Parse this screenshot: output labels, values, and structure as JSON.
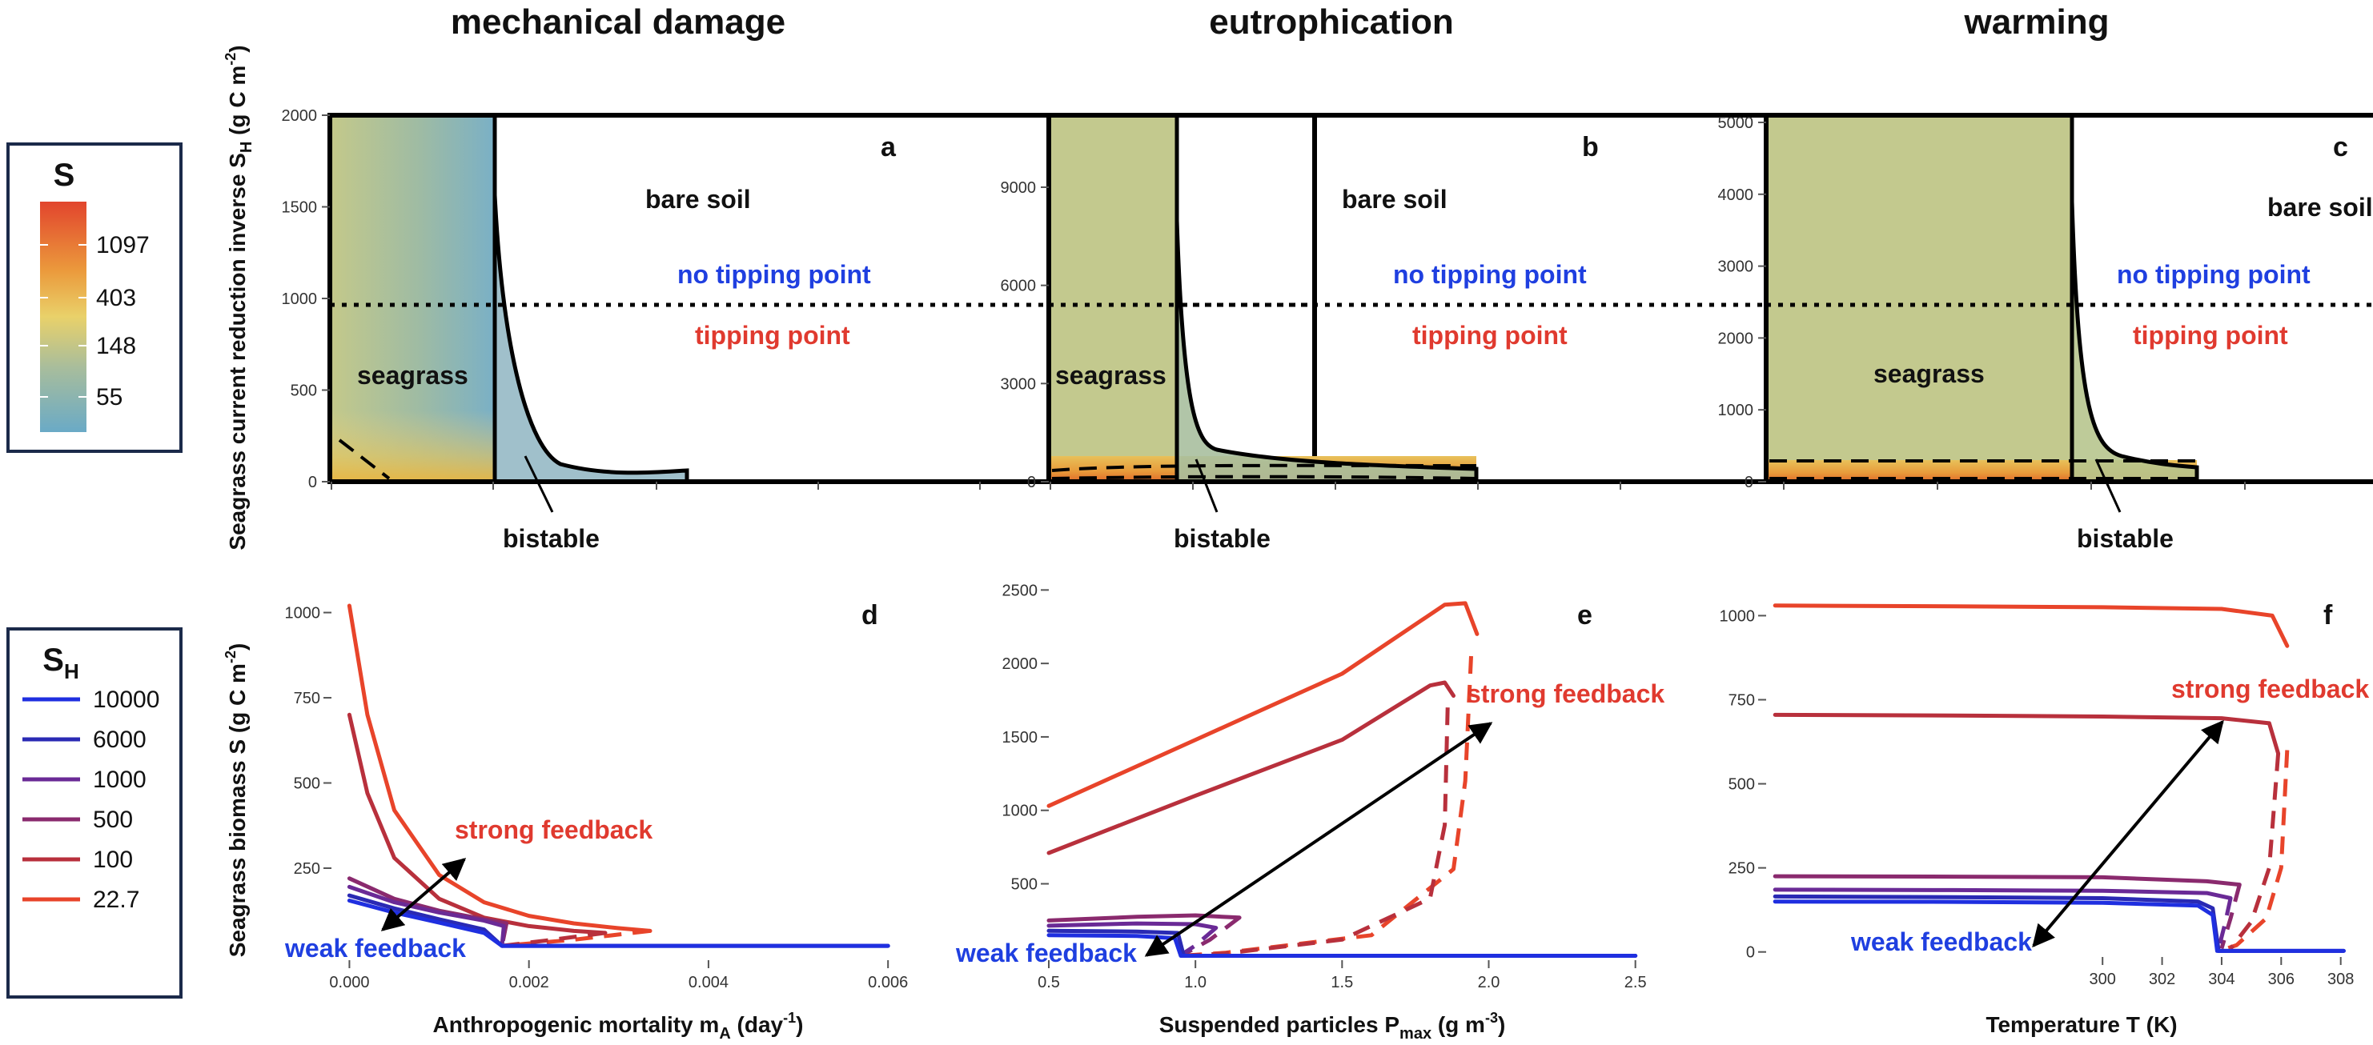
{
  "column_titles": [
    "mechanical damage",
    "eutrophication",
    "warming"
  ],
  "legend_S": {
    "title": "S",
    "labels": [
      "1097",
      "403",
      "148",
      "55"
    ]
  },
  "legend_SH": {
    "title": "S",
    "title_sub": "H",
    "entries": [
      {
        "label": "10000",
        "color": "#1f2fe0"
      },
      {
        "label": "6000",
        "color": "#2a2ab4"
      },
      {
        "label": "1000",
        "color": "#6a2a96"
      },
      {
        "label": "500",
        "color": "#8a2a6e"
      },
      {
        "label": "100",
        "color": "#b8303c"
      },
      {
        "label": "22.7",
        "color": "#e8442a"
      }
    ]
  },
  "labels": {
    "top_ylabel_main": "Seagrass current reduction inverse S",
    "top_ylabel_sub": "H",
    "top_ylabel_unit": " (g C m",
    "top_ylabel_exp": "-2",
    "top_ylabel_close": ")",
    "bottom_ylabel_main": "Seagrass biomass S (g C m",
    "bottom_ylabel_exp": "-2",
    "bottom_ylabel_close": ")",
    "xlabel_d_main": "Anthropogenic mortality m",
    "xlabel_d_sub": "A",
    "xlabel_d_unit": " (day",
    "xlabel_d_exp": "-1",
    "xlabel_d_close": ")",
    "xlabel_e_main": "Suspended particles P",
    "xlabel_e_sub": "max",
    "xlabel_e_unit": " (g m",
    "xlabel_e_exp": "-3",
    "xlabel_e_close": ")",
    "xlabel_f": "Temperature T (K)",
    "bare_soil": "bare soil",
    "seagrass": "seagrass",
    "no_tipping_point": "no tipping point",
    "tipping_point": "tipping point",
    "bistable": "bistable",
    "strong_feedback": "strong feedback",
    "weak_feedback": "weak feedback"
  },
  "chart_data": [
    {
      "panel": "a",
      "type": "area",
      "x_ticks": [
        "0.000",
        "0.002",
        "0.004",
        "0.006"
      ],
      "xlim": [
        0,
        0.006
      ],
      "y_ticks": [
        "0",
        "500",
        "1000",
        "1500",
        "2000"
      ],
      "ylim": [
        0,
        2000
      ],
      "tipping_threshold_SH": 975,
      "regions": [
        "seagrass",
        "bare soil",
        "bistable"
      ],
      "fold_x": 0.00175,
      "fold_x_max": 0.0037
    },
    {
      "panel": "b",
      "type": "area",
      "x_ticks": [],
      "y_ticks": [
        "0",
        "3000",
        "6000",
        "9000"
      ],
      "ylim": [
        0,
        11200
      ],
      "tipping_threshold_SH": 5350,
      "regions": [
        "seagrass",
        "bare soil",
        "bistable"
      ]
    },
    {
      "panel": "c",
      "type": "area",
      "x_ticks": [],
      "y_ticks": [
        "0",
        "1000",
        "2000",
        "3000",
        "4000",
        "5000"
      ],
      "ylim": [
        0,
        5100
      ],
      "tipping_threshold_SH": 2420,
      "regions": [
        "seagrass",
        "bare soil",
        "bistable"
      ]
    },
    {
      "panel": "d",
      "type": "line",
      "x_ticks": [
        "0.000",
        "0.002",
        "0.004",
        "0.006"
      ],
      "xlim": [
        -0.0002,
        0.00615
      ],
      "y_ticks": [
        "250",
        "500",
        "750",
        "1000"
      ],
      "ylim": [
        -20,
        1060
      ],
      "series": [
        {
          "name": "22.7",
          "stable": [
            [
              0,
              1020
            ],
            [
              0.0002,
              700
            ],
            [
              0.0005,
              420
            ],
            [
              0.001,
              230
            ],
            [
              0.0015,
              150
            ],
            [
              0.002,
              110
            ],
            [
              0.0025,
              88
            ],
            [
              0.003,
              74
            ],
            [
              0.00335,
              66
            ]
          ],
          "unstable": [
            [
              0.00335,
              66
            ],
            [
              0.0025,
              40
            ],
            [
              0.0017,
              22
            ]
          ]
        },
        {
          "name": "100",
          "stable": [
            [
              0,
              700
            ],
            [
              0.0002,
              470
            ],
            [
              0.0005,
              280
            ],
            [
              0.001,
              160
            ],
            [
              0.0015,
              105
            ],
            [
              0.002,
              80
            ],
            [
              0.0025,
              66
            ],
            [
              0.00285,
              60
            ]
          ],
          "unstable": [
            [
              0.00285,
              60
            ],
            [
              0.0022,
              38
            ],
            [
              0.0017,
              22
            ]
          ]
        },
        {
          "name": "500",
          "stable": [
            [
              0,
              220
            ],
            [
              0.0005,
              160
            ],
            [
              0.001,
              125
            ],
            [
              0.0015,
              100
            ],
            [
              0.00175,
              88
            ]
          ],
          "unstable": [
            [
              0.00175,
              88
            ],
            [
              0.0017,
              22
            ]
          ]
        },
        {
          "name": "1000",
          "stable": [
            [
              0,
              195
            ],
            [
              0.0005,
              150
            ],
            [
              0.001,
              120
            ],
            [
              0.0015,
              96
            ],
            [
              0.00172,
              80
            ]
          ],
          "unstable": [
            [
              0.00172,
              80
            ],
            [
              0.0017,
              22
            ]
          ]
        },
        {
          "name": "6000",
          "stable": [
            [
              0,
              170
            ],
            [
              0.0005,
              132
            ],
            [
              0.001,
              100
            ],
            [
              0.0015,
              70
            ],
            [
              0.0017,
              22
            ],
            [
              0.006,
              22
            ]
          ]
        },
        {
          "name": "10000",
          "stable": [
            [
              0,
              155
            ],
            [
              0.0005,
              120
            ],
            [
              0.001,
              90
            ],
            [
              0.0015,
              60
            ],
            [
              0.0017,
              22
            ],
            [
              0.006,
              22
            ]
          ]
        }
      ]
    },
    {
      "panel": "e",
      "type": "line",
      "x_ticks": [
        "0.5",
        "1.0",
        "1.5",
        "2.0",
        "2.5"
      ],
      "xlim": [
        0.5,
        2.52
      ],
      "y_ticks": [
        "500",
        "1000",
        "1500",
        "2000",
        "2500"
      ],
      "ylim": [
        -20,
        2540
      ],
      "series": [
        {
          "name": "22.7",
          "stable": [
            [
              0.5,
              1030
            ],
            [
              1.0,
              1480
            ],
            [
              1.5,
              1930
            ],
            [
              1.85,
              2400
            ],
            [
              1.92,
              2410
            ],
            [
              1.96,
              2200
            ]
          ],
          "unstable": [
            [
              1.94,
              2050
            ],
            [
              1.92,
              1200
            ],
            [
              1.88,
              600
            ],
            [
              1.6,
              150
            ],
            [
              1.1,
              30
            ],
            [
              0.95,
              10
            ]
          ]
        },
        {
          "name": "100",
          "stable": [
            [
              0.5,
              710
            ],
            [
              1.0,
              1100
            ],
            [
              1.5,
              1480
            ],
            [
              1.8,
              1850
            ],
            [
              1.85,
              1870
            ],
            [
              1.88,
              1780
            ]
          ],
          "unstable": [
            [
              1.86,
              1700
            ],
            [
              1.85,
              900
            ],
            [
              1.8,
              400
            ],
            [
              1.5,
              120
            ],
            [
              1.1,
              25
            ],
            [
              0.95,
              10
            ]
          ]
        },
        {
          "name": "500",
          "stable": [
            [
              0.5,
              250
            ],
            [
              0.8,
              275
            ],
            [
              1.0,
              285
            ],
            [
              1.15,
              270
            ]
          ],
          "unstable": [
            [
              1.15,
              270
            ],
            [
              1.05,
              120
            ],
            [
              0.96,
              20
            ]
          ]
        },
        {
          "name": "1000",
          "stable": [
            [
              0.5,
              215
            ],
            [
              0.8,
              230
            ],
            [
              1.0,
              225
            ],
            [
              1.07,
              200
            ]
          ],
          "unstable": [
            [
              1.07,
              200
            ],
            [
              1.0,
              80
            ],
            [
              0.95,
              15
            ]
          ]
        },
        {
          "name": "6000",
          "stable": [
            [
              0.5,
              180
            ],
            [
              0.8,
              175
            ],
            [
              0.94,
              165
            ],
            [
              0.96,
              10
            ],
            [
              2.5,
              10
            ]
          ]
        },
        {
          "name": "10000",
          "stable": [
            [
              0.5,
              150
            ],
            [
              0.8,
              145
            ],
            [
              0.93,
              130
            ],
            [
              0.95,
              10
            ],
            [
              2.5,
              10
            ]
          ]
        }
      ]
    },
    {
      "panel": "f",
      "type": "line",
      "x_ticks": [
        "300",
        "302",
        "304",
        "306",
        "308"
      ],
      "xlim": [
        288.7,
        308.6
      ],
      "y_ticks": [
        "0",
        "250",
        "500",
        "750",
        "1000"
      ],
      "ylim": [
        -15,
        1070
      ],
      "series": [
        {
          "name": "22.7",
          "stable": [
            [
              289,
              1030
            ],
            [
              295,
              1028
            ],
            [
              300,
              1025
            ],
            [
              304,
              1020
            ],
            [
              305.7,
              1000
            ],
            [
              306.2,
              910
            ]
          ],
          "unstable": [
            [
              306.2,
              600
            ],
            [
              306.0,
              250
            ],
            [
              305.5,
              100
            ],
            [
              304.5,
              20
            ],
            [
              304.0,
              5
            ]
          ]
        },
        {
          "name": "100",
          "stable": [
            [
              289,
              705
            ],
            [
              295,
              703
            ],
            [
              300,
              700
            ],
            [
              304,
              695
            ],
            [
              305.6,
              680
            ],
            [
              305.9,
              590
            ]
          ],
          "unstable": [
            [
              305.9,
              590
            ],
            [
              305.6,
              250
            ],
            [
              305.0,
              90
            ],
            [
              304.3,
              10
            ]
          ]
        },
        {
          "name": "500",
          "stable": [
            [
              289,
              225
            ],
            [
              295,
              224
            ],
            [
              300,
              222
            ],
            [
              303.5,
              210
            ],
            [
              304.6,
              200
            ]
          ],
          "unstable": [
            [
              304.6,
              200
            ],
            [
              304.3,
              100
            ],
            [
              304.0,
              10
            ]
          ]
        },
        {
          "name": "1000",
          "stable": [
            [
              289,
              185
            ],
            [
              295,
              184
            ],
            [
              300,
              182
            ],
            [
              303.5,
              175
            ],
            [
              304.3,
              160
            ]
          ],
          "unstable": [
            [
              304.3,
              160
            ],
            [
              304.1,
              80
            ],
            [
              303.9,
              10
            ]
          ]
        },
        {
          "name": "6000",
          "stable": [
            [
              289,
              165
            ],
            [
              295,
              163
            ],
            [
              300,
              160
            ],
            [
              303.2,
              150
            ],
            [
              303.7,
              130
            ],
            [
              303.9,
              3
            ],
            [
              308.1,
              3
            ]
          ]
        },
        {
          "name": "10000",
          "stable": [
            [
              289,
              150
            ],
            [
              295,
              149
            ],
            [
              300,
              146
            ],
            [
              303.2,
              138
            ],
            [
              303.7,
              110
            ],
            [
              303.85,
              3
            ],
            [
              308.1,
              3
            ]
          ]
        }
      ]
    }
  ],
  "colors": {
    "stable_red": "#e8442a",
    "strong_feedback": "#e03a2f",
    "weak_feedback": "#1f3fe0"
  }
}
